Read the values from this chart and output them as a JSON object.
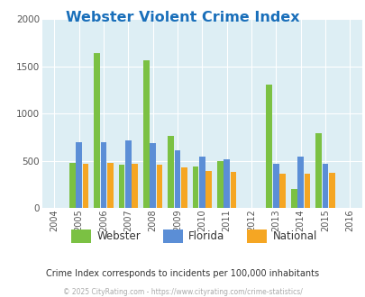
{
  "title": "Webster Violent Crime Index",
  "title_color": "#1a6fba",
  "years": [
    2004,
    2005,
    2006,
    2007,
    2008,
    2009,
    2010,
    2011,
    2012,
    2013,
    2014,
    2015,
    2016
  ],
  "webster": [
    null,
    480,
    1640,
    460,
    1570,
    760,
    440,
    500,
    null,
    1310,
    205,
    790,
    null
  ],
  "florida": [
    null,
    700,
    700,
    720,
    690,
    615,
    545,
    515,
    null,
    465,
    540,
    465,
    null
  ],
  "national": [
    null,
    470,
    475,
    465,
    455,
    425,
    390,
    380,
    null,
    360,
    360,
    375,
    null
  ],
  "bar_colors": {
    "webster": "#7bc143",
    "florida": "#5b8ed6",
    "national": "#f5a623"
  },
  "bar_width": 0.27,
  "ylim": [
    0,
    2000
  ],
  "yticks": [
    0,
    500,
    1000,
    1500,
    2000
  ],
  "xlim": [
    2003.5,
    2016.5
  ],
  "background_color": "#ddeef4",
  "grid_color": "#ffffff",
  "subtitle": "Crime Index corresponds to incidents per 100,000 inhabitants",
  "subtitle_color": "#333333",
  "copyright": "© 2025 CityRating.com - https://www.cityrating.com/crime-statistics/",
  "copyright_color": "#aaaaaa",
  "legend_labels": [
    "Webster",
    "Florida",
    "National"
  ]
}
